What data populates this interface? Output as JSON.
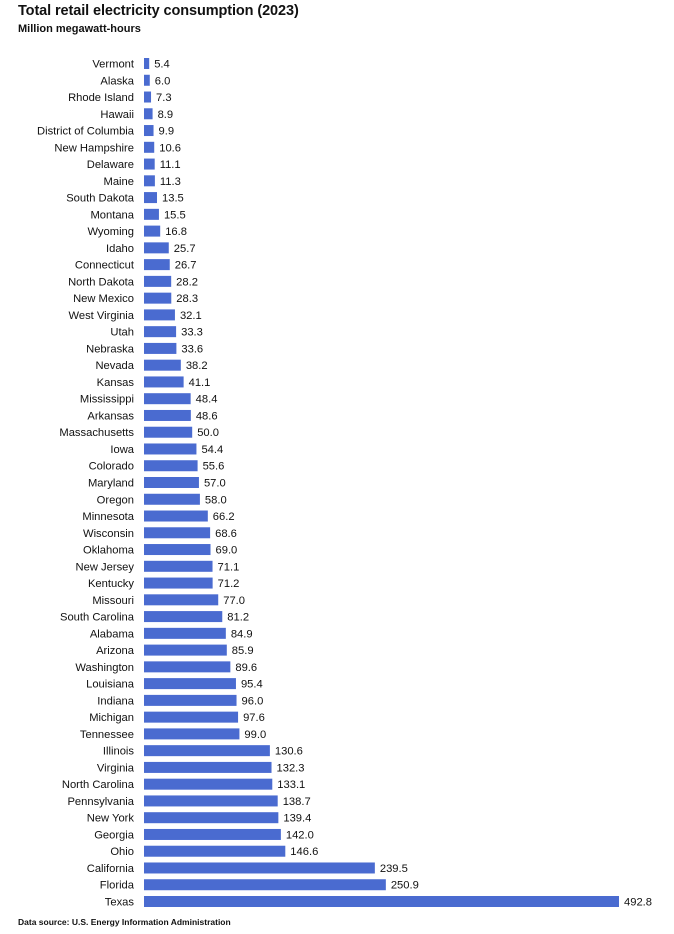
{
  "title": "Total retail electricity consumption (2023)",
  "subtitle": "Million megawatt-hours",
  "source": "Data source: U.S. Energy Information Administration",
  "colors": {
    "bar": "#4A6BD0"
  },
  "chart_data": {
    "type": "bar",
    "orientation": "horizontal",
    "title": "Total retail electricity consumption (2023)",
    "xlabel": "",
    "ylabel": "Million megawatt-hours",
    "categories": [
      "Vermont",
      "Alaska",
      "Rhode Island",
      "Hawaii",
      "District of Columbia",
      "New Hampshire",
      "Delaware",
      "Maine",
      "South Dakota",
      "Montana",
      "Wyoming",
      "Idaho",
      "Connecticut",
      "North Dakota",
      "New Mexico",
      "West Virginia",
      "Utah",
      "Nebraska",
      "Nevada",
      "Kansas",
      "Mississippi",
      "Arkansas",
      "Massachusetts",
      "Iowa",
      "Colorado",
      "Maryland",
      "Oregon",
      "Minnesota",
      "Wisconsin",
      "Oklahoma",
      "New Jersey",
      "Kentucky",
      "Missouri",
      "South Carolina",
      "Alabama",
      "Arizona",
      "Washington",
      "Louisiana",
      "Indiana",
      "Michigan",
      "Tennessee",
      "Illinois",
      "Virginia",
      "North Carolina",
      "Pennsylvania",
      "New York",
      "Georgia",
      "Ohio",
      "California",
      "Florida",
      "Texas"
    ],
    "values": [
      5.4,
      6.0,
      7.3,
      8.9,
      9.9,
      10.6,
      11.1,
      11.3,
      13.5,
      15.5,
      16.8,
      25.7,
      26.7,
      28.2,
      28.3,
      32.1,
      33.3,
      33.6,
      38.2,
      41.1,
      48.4,
      48.6,
      50.0,
      54.4,
      55.6,
      57.0,
      58.0,
      66.2,
      68.6,
      69.0,
      71.1,
      71.2,
      77.0,
      81.2,
      84.9,
      85.9,
      89.6,
      95.4,
      96.0,
      97.6,
      99.0,
      130.6,
      132.3,
      133.1,
      138.7,
      139.4,
      142.0,
      146.6,
      239.5,
      250.9,
      492.8
    ],
    "value_labels": [
      "5.4",
      "6.0",
      "7.3",
      "8.9",
      "9.9",
      "10.6",
      "11.1",
      "11.3",
      "13.5",
      "15.5",
      "16.8",
      "25.7",
      "26.7",
      "28.2",
      "28.3",
      "32.1",
      "33.3",
      "33.6",
      "38.2",
      "41.1",
      "48.4",
      "48.6",
      "50.0",
      "54.4",
      "55.6",
      "57.0",
      "58.0",
      "66.2",
      "68.6",
      "69.0",
      "71.1",
      "71.2",
      "77.0",
      "81.2",
      "84.9",
      "85.9",
      "89.6",
      "95.4",
      "96.0",
      "97.6",
      "99.0",
      "130.6",
      "132.3",
      "133.1",
      "138.7",
      "139.4",
      "142.0",
      "146.6",
      "239.5",
      "250.9",
      "492.8"
    ],
    "xlim": [
      0,
      492.8
    ],
    "grid": false,
    "legend": "none"
  }
}
